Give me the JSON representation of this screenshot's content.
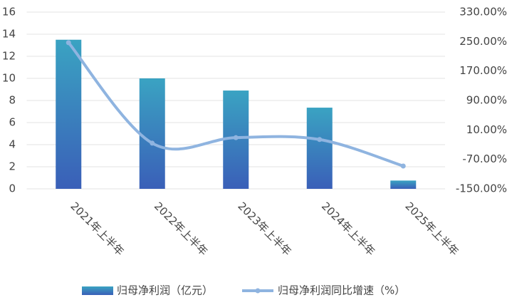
{
  "chart_data": {
    "type": "bar_line",
    "categories": [
      "2021年上半年",
      "2022年上半年",
      "2023年上半年",
      "2024年上半年",
      "2025年上半年"
    ],
    "series": [
      {
        "name": "归母净利润（亿元）",
        "type": "bar",
        "color": "#3a8fbe",
        "values": [
          13.5,
          10.0,
          8.9,
          7.35,
          0.75
        ]
      },
      {
        "name": "归母净利润同比增速（%）",
        "type": "line",
        "axis": "y2",
        "color": "#8fb4e0",
        "values": [
          247,
          -26,
          -11,
          -16,
          -88
        ]
      }
    ],
    "ylim": [
      0,
      16
    ],
    "yticks": [
      0,
      2,
      4,
      6,
      8,
      10,
      12,
      14,
      16
    ],
    "y2lim": [
      -150,
      330
    ],
    "y2ticks": [
      {
        "value": -150,
        "label": "-150.00%"
      },
      {
        "value": -70,
        "label": "-70.00%"
      },
      {
        "value": 10,
        "label": "10.00%"
      },
      {
        "value": 90,
        "label": "90.00%"
      },
      {
        "value": 170,
        "label": "170.00%"
      },
      {
        "value": 250,
        "label": "250.00%"
      },
      {
        "value": 330,
        "label": "330.00%"
      }
    ],
    "grid": true,
    "legend": "bottom"
  }
}
